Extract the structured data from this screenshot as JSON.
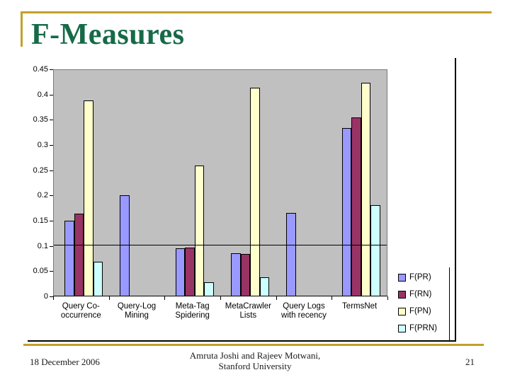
{
  "slide": {
    "title": "F-Measures"
  },
  "footer": {
    "date": "18 December 2006",
    "credit_line1": "Amruta Joshi and Rajeev Motwani,",
    "credit_line2": "Stanford University",
    "page_number": "21"
  },
  "colors": {
    "accent_gold": "#C5A028",
    "title_green": "#166A47",
    "plot_background": "#C0C0C0",
    "bar_outline": "#000000"
  },
  "chart_data": {
    "type": "bar",
    "title": "",
    "xlabel": "",
    "ylabel": "",
    "categories": [
      "Query Co-occurrence",
      "Query-Log Mining",
      "Meta-Tag Spidering",
      "MetaCrawler Lists",
      "Query Logs with recency",
      "TermsNet"
    ],
    "category_lines": [
      [
        "Query Co-",
        "occurrence"
      ],
      [
        "Query-Log",
        "Mining"
      ],
      [
        "Meta-Tag",
        "Spidering"
      ],
      [
        "MetaCrawler",
        "Lists"
      ],
      [
        "Query Logs",
        "with recency"
      ],
      [
        "TermsNet"
      ]
    ],
    "series": [
      {
        "name": "F(PR)",
        "color": "#9999FF",
        "values": [
          0.15,
          0.2,
          0.095,
          0.085,
          0.165,
          0.335
        ]
      },
      {
        "name": "F(RN)",
        "color": "#993366",
        "values": [
          0.163,
          0,
          0.096,
          0.083,
          0,
          0.355
        ]
      },
      {
        "name": "F(PN)",
        "color": "#FFFFCC",
        "values": [
          0.39,
          0,
          0.26,
          0.415,
          0,
          0.425
        ]
      },
      {
        "name": "F(PRN)",
        "color": "#CCFFFF",
        "values": [
          0.068,
          0,
          0.027,
          0.037,
          0,
          0.18
        ]
      }
    ],
    "ylim": [
      0,
      0.45
    ],
    "ytick_labels": [
      "0.45",
      "0.4",
      "0.35",
      "0.3",
      "0.25",
      "0.2",
      "0.15",
      "0.1",
      "0.05",
      "0"
    ],
    "gridline_value": 0.1,
    "grid": "single horizontal gridline at 0.1",
    "legend_position": "bottom-right outside plot"
  }
}
